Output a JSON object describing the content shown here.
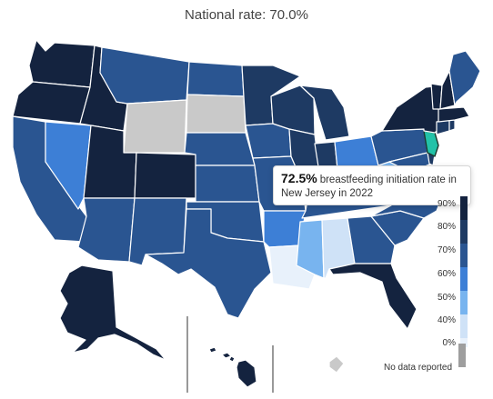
{
  "title": "National rate: 70.0%",
  "tooltip": {
    "value": "72.5%",
    "text": "breastfeeding initiation rate in New Jersey in 2022"
  },
  "legend": {
    "items": [
      {
        "label": "90%",
        "color": "#14233f"
      },
      {
        "label": "80%",
        "color": "#1e3a63"
      },
      {
        "label": "70%",
        "color": "#2a5591"
      },
      {
        "label": "60%",
        "color": "#3d7fd6"
      },
      {
        "label": "50%",
        "color": "#78b4ef"
      },
      {
        "label": "40%",
        "color": "#cfe2f7"
      },
      {
        "label": "0%",
        "color": "#e8f1fb"
      }
    ],
    "nodata_label": "No data reported",
    "nodata_color": "#9e9e9e"
  },
  "colors": {
    "highlight": "#22c2a8",
    "highlight_state": "New Jersey"
  }
}
